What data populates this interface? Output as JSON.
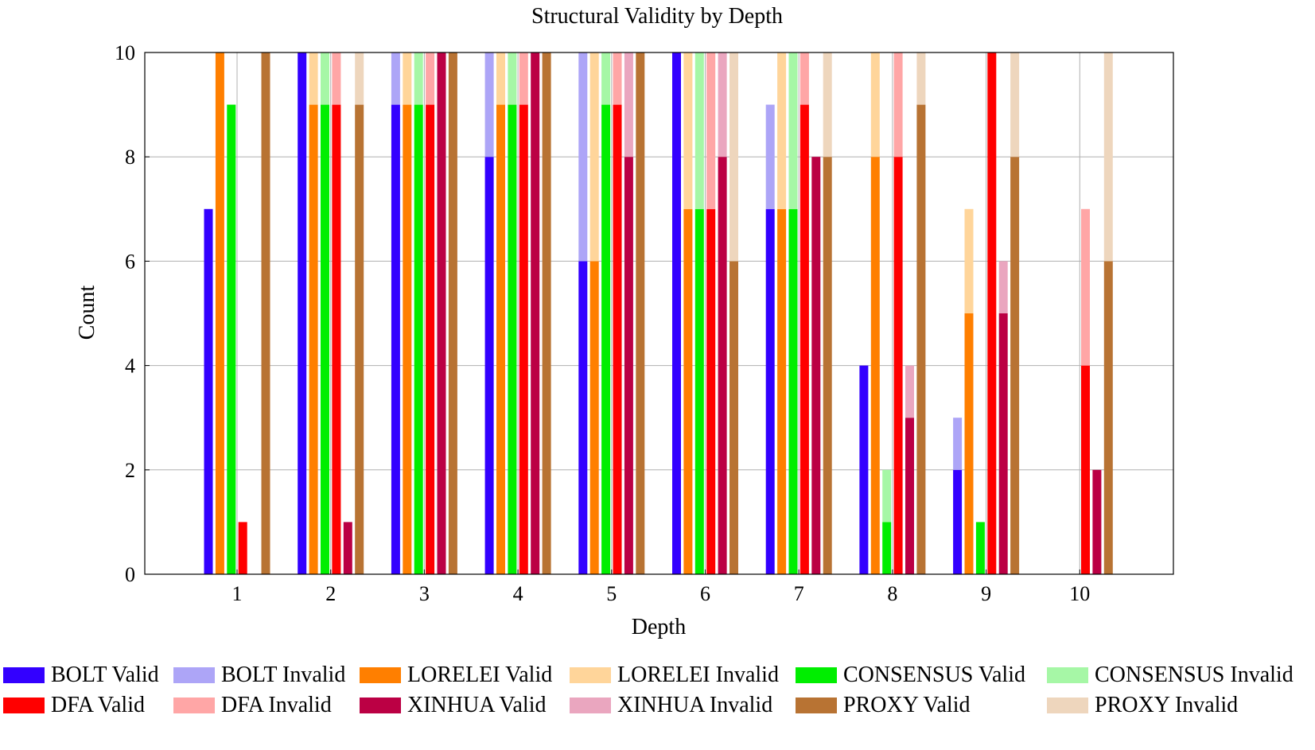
{
  "chart_data": {
    "type": "bar",
    "stacked_valid_invalid": true,
    "title": "Structural Validity by Depth",
    "xlabel": "Depth",
    "ylabel": "Count",
    "ylim": [
      0,
      10
    ],
    "yticks": [
      "0",
      "2",
      "4",
      "6",
      "8",
      "10"
    ],
    "categories": [
      "1",
      "2",
      "3",
      "4",
      "5",
      "6",
      "7",
      "8",
      "9",
      "10"
    ],
    "grid": true,
    "legend_position": "bottom",
    "series": [
      {
        "name": "BOLT",
        "valid_label": "BOLT Valid",
        "invalid_label": "BOLT Invalid",
        "valid_color": "#3300ff",
        "invalid_color": "#ada5f7",
        "valid": [
          7,
          10,
          9,
          8,
          6,
          10,
          7,
          4,
          2,
          0
        ],
        "invalid": [
          0,
          0,
          1,
          2,
          4,
          0,
          2,
          0,
          1,
          0
        ]
      },
      {
        "name": "LORELEI",
        "valid_label": "LORELEI Valid",
        "invalid_label": "LORELEI Invalid",
        "valid_color": "#ff7f00",
        "invalid_color": "#ffd59a",
        "valid": [
          10,
          9,
          9,
          9,
          6,
          7,
          7,
          8,
          5,
          0
        ],
        "invalid": [
          0,
          1,
          1,
          1,
          4,
          3,
          3,
          2,
          2,
          0
        ]
      },
      {
        "name": "CONSENSUS",
        "valid_label": "CONSENSUS Valid",
        "invalid_label": "CONSENSUS Invalid",
        "valid_color": "#00ee00",
        "invalid_color": "#a6f7a6",
        "valid": [
          9,
          9,
          9,
          9,
          9,
          7,
          7,
          1,
          1,
          0
        ],
        "invalid": [
          0,
          1,
          1,
          1,
          1,
          3,
          3,
          1,
          0,
          0
        ]
      },
      {
        "name": "DFA",
        "valid_label": "DFA Valid",
        "invalid_label": "DFA Invalid",
        "valid_color": "#ff0000",
        "invalid_color": "#ffa6a6",
        "valid": [
          1,
          9,
          9,
          9,
          9,
          7,
          9,
          8,
          10,
          4
        ],
        "invalid": [
          0,
          1,
          1,
          1,
          1,
          3,
          1,
          2,
          0,
          3
        ]
      },
      {
        "name": "XINHUA",
        "valid_label": "XINHUA Valid",
        "invalid_label": "XINHUA Invalid",
        "valid_color": "#bb0044",
        "invalid_color": "#eaa6bf",
        "valid": [
          0,
          1,
          10,
          10,
          8,
          8,
          8,
          3,
          5,
          2
        ],
        "invalid": [
          0,
          0,
          0,
          0,
          2,
          2,
          0,
          1,
          1,
          0
        ]
      },
      {
        "name": "PROXY",
        "valid_label": "PROXY Valid",
        "invalid_label": "PROXY Invalid",
        "valid_color": "#b87333",
        "invalid_color": "#eed6bd",
        "valid": [
          10,
          9,
          10,
          10,
          10,
          6,
          8,
          9,
          8,
          6
        ],
        "invalid": [
          0,
          1,
          0,
          0,
          0,
          4,
          2,
          1,
          2,
          4
        ]
      }
    ]
  }
}
